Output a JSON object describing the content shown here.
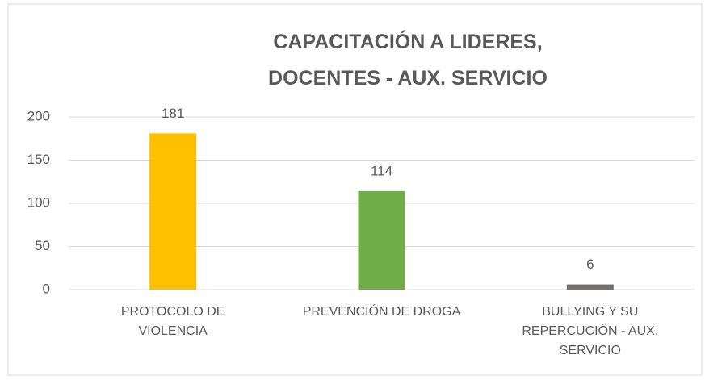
{
  "chart_data": {
    "type": "bar",
    "title": "CAPACITACIÓN A LIDERES, DOCENTES - AUX. SERVICIO",
    "categories": [
      "PROTOCOLO DE VIOLENCIA",
      "PREVENCIÓN DE DROGA",
      "BULLYING Y SU REPERCUCIÓN - AUX. SERVICIO"
    ],
    "values": [
      181,
      114,
      6
    ],
    "colors": [
      "#ffc000",
      "#70ad47",
      "#767171"
    ],
    "ylim": [
      0,
      200
    ],
    "yticks": [
      0,
      50,
      100,
      150,
      200
    ],
    "grid": true
  }
}
